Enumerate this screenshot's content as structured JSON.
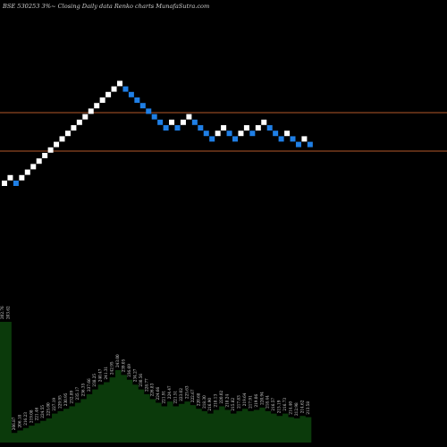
{
  "title": "BSE 530253 3%~  Closing Daily data  Renko  charts MunafaSutra.com",
  "chart_data": {
    "type": "renko",
    "brick_direction": [
      "up",
      "up",
      "down",
      "up",
      "up",
      "up",
      "up",
      "up",
      "up",
      "up",
      "up",
      "up",
      "up",
      "up",
      "up",
      "up",
      "up",
      "up",
      "up",
      "up",
      "up",
      "down",
      "down",
      "down",
      "down",
      "down",
      "down",
      "down",
      "down",
      "up",
      "down",
      "up",
      "up",
      "down",
      "down",
      "down",
      "down",
      "up",
      "up",
      "down",
      "down",
      "up",
      "up",
      "down",
      "up",
      "up",
      "down",
      "down",
      "down",
      "up",
      "down",
      "down",
      "up",
      "down"
    ],
    "color_up": "#ffffff",
    "color_down": "#1f7fe6",
    "background": "#000000",
    "horizontal_lines_color": "#b5582a",
    "volume_color": "#0b3a0b",
    "volume_labels": [
      "202.76",
      "203.62",
      "206.87",
      "206.18",
      "216.23",
      "219.08",
      "221.46",
      "224.55",
      "225.00",
      "227.19",
      "229.95",
      "230.95",
      "232.89",
      "235.17",
      "236.35",
      "237.66",
      "238.25",
      "240.47",
      "241.31",
      "242.95",
      "243.00",
      "239.05",
      "236.69",
      "234.27",
      "230.56",
      "228.77",
      "226.83",
      "224.66",
      "221.91",
      "224.47",
      "221.51",
      "223.02",
      "225.63",
      "222.67",
      "220.68",
      "218.30",
      "216.90",
      "218.13",
      "220.02",
      "218.24",
      "215.82",
      "217.83",
      "219.64",
      "217.91",
      "219.06",
      "220.94",
      "218.44",
      "216.57",
      "215.19",
      "216.73",
      "214.40",
      "212.98",
      "214.62",
      "213.58"
    ],
    "volume_values": [
      100,
      100,
      8,
      10,
      12,
      14,
      16,
      18,
      20,
      24,
      26,
      28,
      30,
      33,
      36,
      40,
      44,
      48,
      50,
      54,
      60,
      56,
      52,
      48,
      44,
      40,
      36,
      33,
      30,
      34,
      30,
      32,
      34,
      31,
      28,
      26,
      24,
      27,
      30,
      27,
      24,
      26,
      28,
      26,
      27,
      29,
      26,
      24,
      22,
      24,
      21,
      20,
      22,
      21
    ]
  }
}
